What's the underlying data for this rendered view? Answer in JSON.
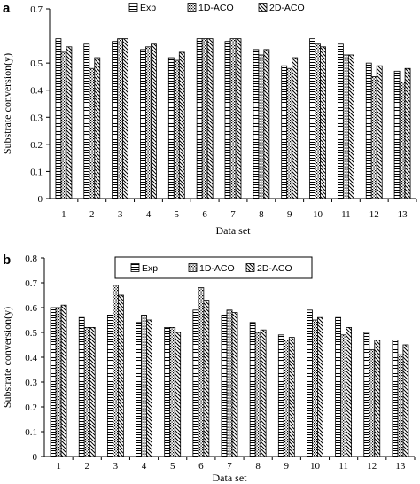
{
  "panels": [
    {
      "label": "a",
      "chart_data": {
        "type": "bar",
        "xlabel": "Data set",
        "ylabel": "Substrate conversion(y)",
        "ylim": [
          0,
          0.7
        ],
        "yticks": [
          "0",
          "0.1",
          "0.2",
          "0.3",
          "0.4",
          "0.5",
          "0.7"
        ],
        "yticks_values": [
          0,
          0.1,
          0.2,
          0.3,
          0.4,
          0.5,
          0.7
        ],
        "categories": [
          "1",
          "2",
          "3",
          "4",
          "5",
          "6",
          "7",
          "8",
          "9",
          "10",
          "11",
          "12",
          "13"
        ],
        "legend_position": "top-center",
        "legend_box": false,
        "series": [
          {
            "name": "Exp",
            "pattern": "hlines",
            "values": [
              0.59,
              0.57,
              0.58,
              0.55,
              0.52,
              0.59,
              0.58,
              0.55,
              0.49,
              0.59,
              0.57,
              0.5,
              0.47
            ]
          },
          {
            "name": "1D-ACO",
            "pattern": "dots",
            "values": [
              0.54,
              0.48,
              0.59,
              0.56,
              0.51,
              0.59,
              0.59,
              0.53,
              0.48,
              0.57,
              0.53,
              0.45,
              0.43
            ]
          },
          {
            "name": "2D-ACO",
            "pattern": "diag",
            "values": [
              0.56,
              0.52,
              0.59,
              0.57,
              0.54,
              0.59,
              0.59,
              0.55,
              0.52,
              0.56,
              0.53,
              0.49,
              0.48
            ]
          }
        ]
      }
    },
    {
      "label": "b",
      "chart_data": {
        "type": "bar",
        "xlabel": "Data set",
        "ylabel": "Substrate conversion(y)",
        "ylim": [
          0,
          0.8
        ],
        "yticks": [
          "0",
          "0.1",
          "0.2",
          "0.3",
          "0.4",
          "0.5",
          "0.6",
          "0.7",
          "0.8"
        ],
        "yticks_values": [
          0,
          0.1,
          0.2,
          0.3,
          0.4,
          0.5,
          0.6,
          0.7,
          0.8
        ],
        "categories": [
          "1",
          "2",
          "3",
          "4",
          "5",
          "6",
          "7",
          "8",
          "9",
          "10",
          "11",
          "12",
          "13"
        ],
        "legend_position": "top-center",
        "legend_box": true,
        "series": [
          {
            "name": "Exp",
            "pattern": "hlines",
            "values": [
              0.6,
              0.56,
              0.57,
              0.54,
              0.52,
              0.59,
              0.57,
              0.54,
              0.49,
              0.59,
              0.56,
              0.5,
              0.47
            ]
          },
          {
            "name": "1D-ACO",
            "pattern": "dots",
            "values": [
              0.6,
              0.52,
              0.69,
              0.57,
              0.52,
              0.68,
              0.59,
              0.5,
              0.47,
              0.55,
              0.49,
              0.43,
              0.41
            ]
          },
          {
            "name": "2D-ACO",
            "pattern": "diag",
            "values": [
              0.61,
              0.52,
              0.65,
              0.55,
              0.5,
              0.63,
              0.58,
              0.51,
              0.48,
              0.56,
              0.52,
              0.47,
              0.45
            ]
          }
        ]
      }
    }
  ]
}
